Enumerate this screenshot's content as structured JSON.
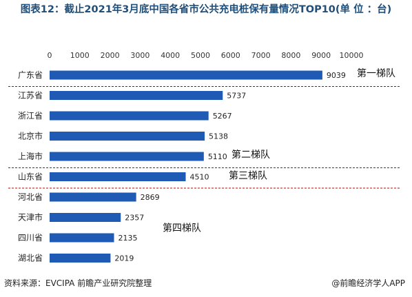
{
  "title": "图表12：截止2021年3月底中国各省市公共充电桩保有量情况TOP10(单 位 ：台)",
  "footer": {
    "source": "资料来源：EVCIPA 前瞻产业研究院整理",
    "brand": "@前瞻经济学人APP"
  },
  "colors": {
    "bar": "#1f5bb5",
    "title": "#1f4e79",
    "separator": "#c00000"
  },
  "chart_data": {
    "type": "bar",
    "orientation": "horizontal",
    "title": "图表12：截止2021年3月底中国各省市公共充电桩保有量情况TOP10(单 位 ：台)",
    "categories": [
      "广东省",
      "江苏省",
      "浙江省",
      "北京市",
      "上海市",
      "山东省",
      "河北省",
      "天津市",
      "四川省",
      "湖北省"
    ],
    "values": [
      9039,
      5737,
      5267,
      5138,
      5110,
      4510,
      2869,
      2357,
      2135,
      2019
    ],
    "xlim": [
      0,
      10000
    ],
    "xticks": [
      "0",
      "1000",
      "2000",
      "3000",
      "4000",
      "5000",
      "6000",
      "7000",
      "8000",
      "9000",
      "10000"
    ],
    "xaxis_position": "top",
    "grid": false,
    "annotations": [
      {
        "text": "第一梯队",
        "category": "广东省"
      },
      {
        "text": "第二梯队",
        "category": "上海市"
      },
      {
        "text": "第三梯队",
        "category": "山东省"
      },
      {
        "text": "第四梯队",
        "category": "天津市"
      }
    ]
  }
}
